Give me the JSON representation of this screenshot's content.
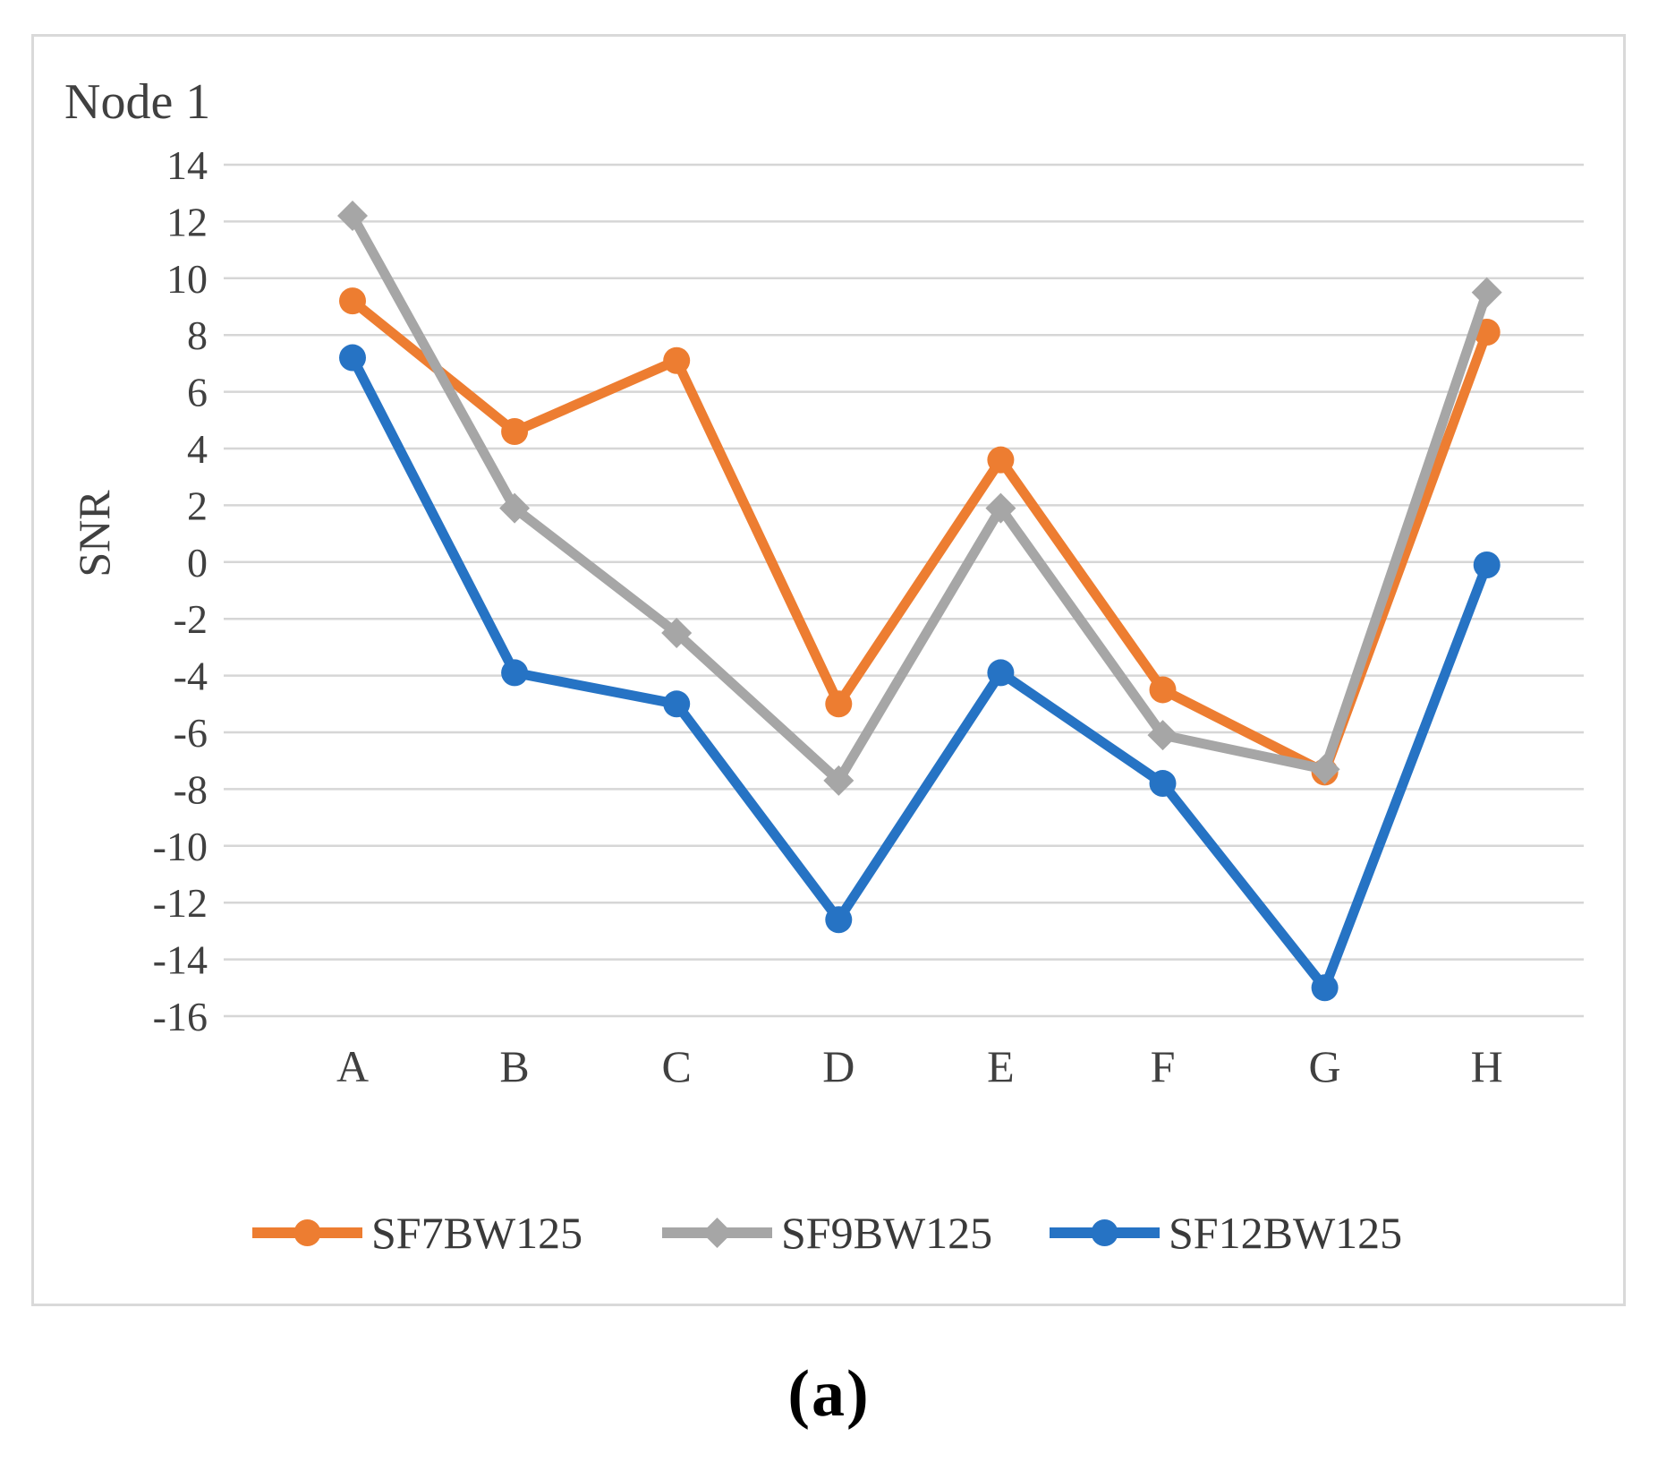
{
  "figure": {
    "caption": "(a)"
  },
  "chart_data": {
    "type": "line",
    "title": "Node 1",
    "xlabel": "",
    "ylabel": "SNR",
    "categories": [
      "A",
      "B",
      "C",
      "D",
      "E",
      "F",
      "G",
      "H"
    ],
    "y_ticks": [
      14,
      12,
      10,
      8,
      6,
      4,
      2,
      0,
      -2,
      -4,
      -6,
      -8,
      -10,
      -12,
      -14,
      -16
    ],
    "ylim": [
      -16,
      14
    ],
    "grid": "horizontal-only",
    "legend_position": "bottom",
    "series": [
      {
        "name": "SF7BW125",
        "color": "#ED7D31",
        "marker": "circle",
        "values": [
          9.2,
          4.6,
          7.1,
          -5.0,
          3.6,
          -4.5,
          -7.4,
          8.1
        ]
      },
      {
        "name": "SF9BW125",
        "color": "#A6A6A6",
        "marker": "diamond",
        "values": [
          12.2,
          1.9,
          -2.5,
          -7.7,
          1.9,
          -6.1,
          -7.3,
          9.5
        ]
      },
      {
        "name": "SF12BW125",
        "color": "#2673C4",
        "marker": "circle",
        "values": [
          7.2,
          -3.9,
          -5.0,
          -12.6,
          -3.9,
          -7.8,
          -15.0,
          -0.1
        ]
      }
    ],
    "text_color": "#404040",
    "grid_color": "#d6d6d6",
    "frame_color": "#d9d9d9"
  }
}
